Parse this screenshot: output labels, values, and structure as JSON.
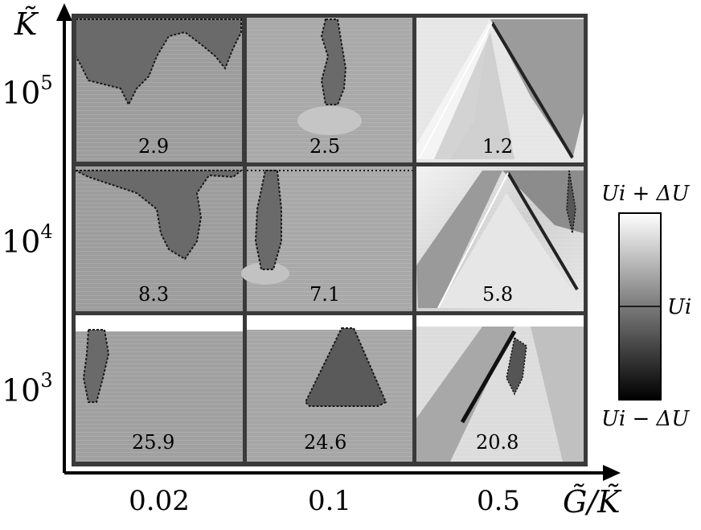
{
  "figure": {
    "y_axis_label": "K̃",
    "x_axis_label": "G̃/K̃",
    "y_ticks": [
      {
        "base": "10",
        "exp": "5"
      },
      {
        "base": "10",
        "exp": "4"
      },
      {
        "base": "10",
        "exp": "3"
      }
    ],
    "x_ticks": [
      "0.02",
      "0.1",
      "0.5"
    ],
    "panels": [
      [
        "2.9",
        "2.5",
        "1.2"
      ],
      [
        "8.3",
        "7.1",
        "5.8"
      ],
      [
        "25.9",
        "24.6",
        "20.8"
      ]
    ],
    "colorbar": {
      "top_label": "Ui + ΔU",
      "mid_label": "Ui",
      "bottom_label": "Ui − ΔU",
      "gradient": [
        "#ffffff",
        "#7a7a7a",
        "#000000"
      ]
    },
    "colors": {
      "grid": "#3a3a3a",
      "panel_gray": "#9a9a9a",
      "panel_light": "#d8d8d8"
    }
  }
}
